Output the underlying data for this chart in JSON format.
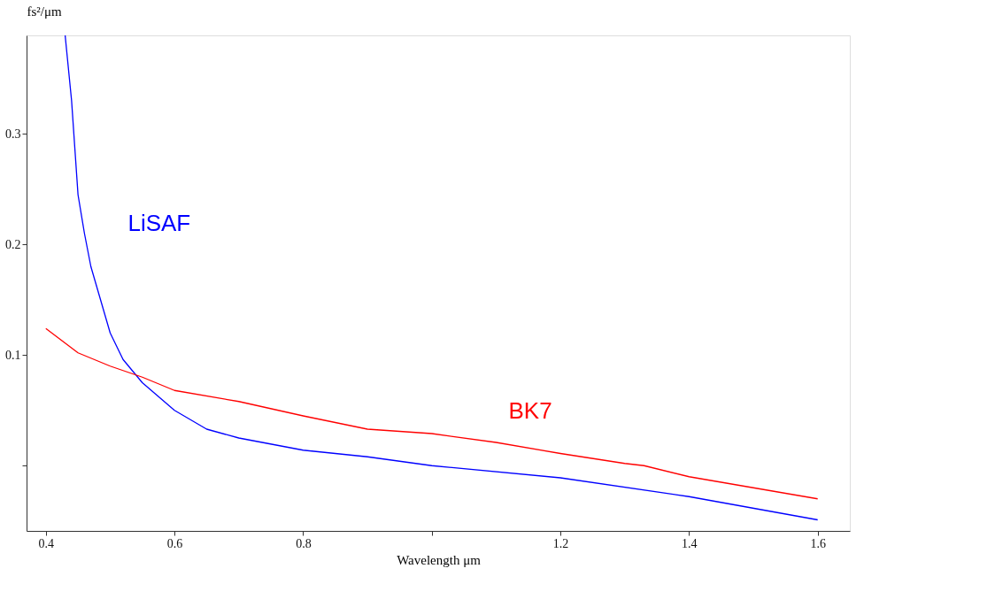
{
  "chart_data": {
    "type": "line",
    "xlabel": "Wavelength μm",
    "ylabel": "fs²/μm",
    "xlim": [
      0.37,
      1.65
    ],
    "ylim": [
      -0.059,
      0.389
    ],
    "xticks": [
      0.4,
      0.6,
      0.8,
      {
        "value": 1.0,
        "label": null
      },
      1.2,
      1.4,
      1.6
    ],
    "yticks": [
      {
        "value": 0,
        "label": null
      },
      0.1,
      0.2,
      0.3
    ],
    "grid": false,
    "marker": "none",
    "line_style": "solid",
    "series": [
      {
        "name": "LiSAF",
        "color": "#0000ff",
        "x": [
          0.43,
          0.44,
          0.45,
          0.46,
          0.47,
          0.48,
          0.5,
          0.52,
          0.55,
          0.6,
          0.65,
          0.7,
          0.8,
          0.9,
          1.0,
          1.2,
          1.4,
          1.6
        ],
        "values": [
          0.389,
          0.33,
          0.245,
          0.21,
          0.18,
          0.16,
          0.12,
          0.096,
          0.075,
          0.05,
          0.033,
          0.025,
          0.014,
          0.008,
          0,
          -0.011,
          -0.028,
          -0.049
        ]
      },
      {
        "name": "BK7",
        "color": "#ff0000",
        "x": [
          0.4,
          0.45,
          0.5,
          0.55,
          0.6,
          0.7,
          0.8,
          0.9,
          1.0,
          1.1,
          1.2,
          1.3,
          1.33,
          1.4,
          1.5,
          1.6
        ],
        "values": [
          0.124,
          0.102,
          0.09,
          0.08,
          0.068,
          0.058,
          0.045,
          0.033,
          0.029,
          0.021,
          0.011,
          0.002,
          0,
          -0.01,
          -0.02,
          -0.03
        ]
      }
    ]
  }
}
